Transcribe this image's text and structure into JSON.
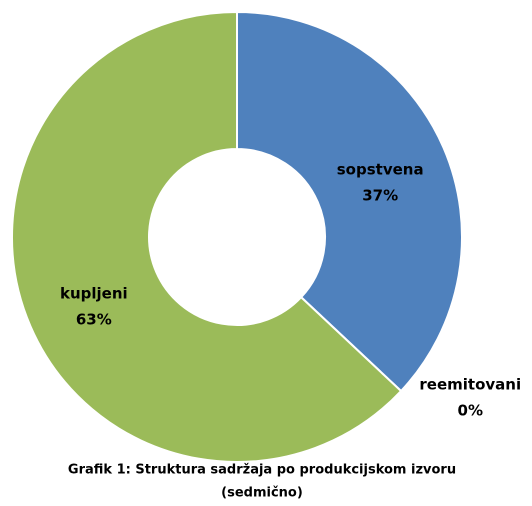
{
  "chart_data": {
    "type": "donut",
    "title": "Grafik 1: Struktura sadržaja  po produkcijskom  izvoru",
    "subtitle": "(sedmično)",
    "categories": [
      "sopstvena",
      "reemitovani",
      "kupljeni"
    ],
    "values": [
      37,
      0,
      63
    ],
    "value_labels": [
      "37%",
      "0%",
      "63%"
    ],
    "colors": [
      "#4f81bd",
      "#c0504d",
      "#9bbb59"
    ]
  }
}
